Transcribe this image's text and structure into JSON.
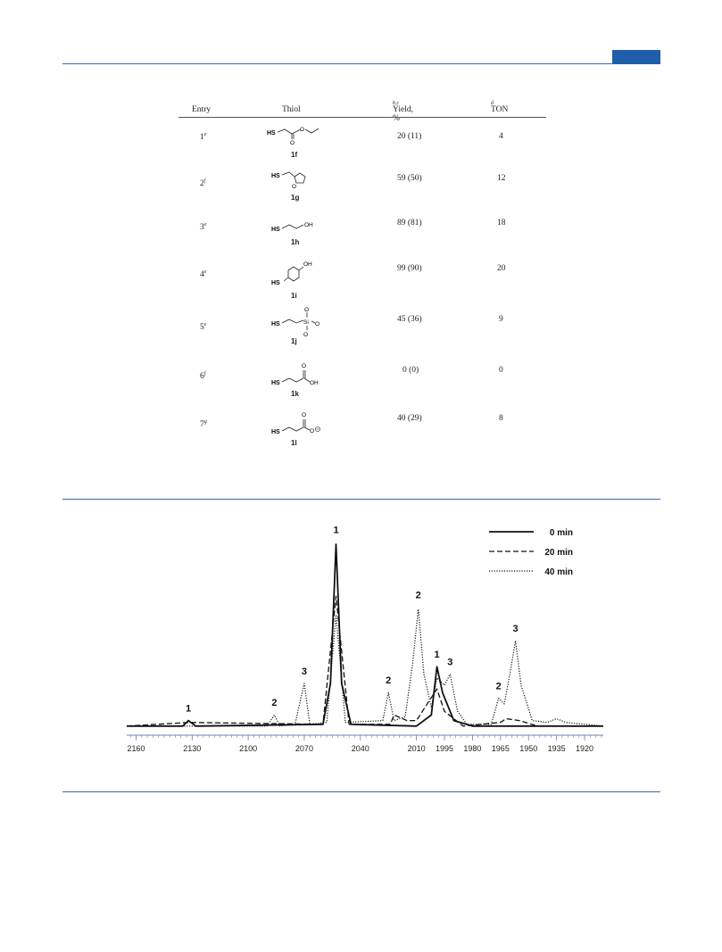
{
  "header": {
    "accent_color": "#1f5faa"
  },
  "table": {
    "columns": [
      {
        "label": "Entry",
        "sup": ""
      },
      {
        "label": "Thiol",
        "sup": ""
      },
      {
        "label": "Yield, %",
        "sup": "b,c"
      },
      {
        "label": "TON",
        "sup": "d"
      }
    ],
    "rows": [
      {
        "entry": "1",
        "sup": "e",
        "thiol_label": "1f",
        "yield": "20 (11)",
        "ton": "4"
      },
      {
        "entry": "2",
        "sup": "f",
        "thiol_label": "1g",
        "yield": "59 (50)",
        "ton": "12"
      },
      {
        "entry": "3",
        "sup": "e",
        "thiol_label": "1h",
        "yield": "89 (81)",
        "ton": "18"
      },
      {
        "entry": "4",
        "sup": "e",
        "thiol_label": "1i",
        "yield": "99 (90)",
        "ton": "20"
      },
      {
        "entry": "5",
        "sup": "e",
        "thiol_label": "1j",
        "yield": "45 (36)",
        "ton": "9"
      },
      {
        "entry": "6",
        "sup": "f",
        "thiol_label": "1k",
        "yield": "0 (0)",
        "ton": "0"
      },
      {
        "entry": "7",
        "sup": "g",
        "thiol_label": "1l",
        "yield": "40 (29)",
        "ton": "8"
      }
    ],
    "atoms": {
      "hs": "HS",
      "oh": "OH",
      "o": "O",
      "si": "Si"
    }
  },
  "chart_data": {
    "type": "line",
    "xlabel": "",
    "ylabel": "",
    "xlim": [
      2165,
      1910
    ],
    "x_ticks": [
      2160,
      2130,
      2100,
      2070,
      2040,
      2010,
      1995,
      1980,
      1965,
      1950,
      1935,
      1920
    ],
    "legend_position": "top-right",
    "series": [
      {
        "name": "0 min",
        "style": "solid",
        "points": [
          [
            2165,
            0.02
          ],
          [
            2135,
            0.02
          ],
          [
            2132,
            0.05
          ],
          [
            2128,
            0.02
          ],
          [
            2060,
            0.03
          ],
          [
            2056,
            0.25
          ],
          [
            2053,
            1.0
          ],
          [
            2050,
            0.25
          ],
          [
            2045,
            0.03
          ],
          [
            2010,
            0.02
          ],
          [
            2002,
            0.08
          ],
          [
            1999,
            0.34
          ],
          [
            1996,
            0.2
          ],
          [
            1990,
            0.05
          ],
          [
            1980,
            0.02
          ],
          [
            1910,
            0.02
          ]
        ]
      },
      {
        "name": "20 min",
        "style": "dashed",
        "points": [
          [
            2165,
            0.02
          ],
          [
            2132,
            0.04
          ],
          [
            2060,
            0.03
          ],
          [
            2053,
            0.72
          ],
          [
            2046,
            0.03
          ],
          [
            2024,
            0.03
          ],
          [
            2022,
            0.08
          ],
          [
            2015,
            0.05
          ],
          [
            2010,
            0.05
          ],
          [
            1999,
            0.22
          ],
          [
            1995,
            0.1
          ],
          [
            1985,
            0.02
          ],
          [
            1965,
            0.04
          ],
          [
            1962,
            0.06
          ],
          [
            1955,
            0.05
          ],
          [
            1945,
            0.02
          ],
          [
            1910,
            0.02
          ]
        ]
      },
      {
        "name": "40 min",
        "style": "dotted",
        "points": [
          [
            2165,
            0.02
          ],
          [
            2090,
            0.02
          ],
          [
            2086,
            0.08
          ],
          [
            2083,
            0.02
          ],
          [
            2075,
            0.03
          ],
          [
            2070,
            0.25
          ],
          [
            2067,
            0.03
          ],
          [
            2058,
            0.04
          ],
          [
            2053,
            0.62
          ],
          [
            2048,
            0.04
          ],
          [
            2028,
            0.05
          ],
          [
            2025,
            0.2
          ],
          [
            2022,
            0.05
          ],
          [
            2016,
            0.07
          ],
          [
            2012,
            0.36
          ],
          [
            2009,
            0.65
          ],
          [
            2006,
            0.3
          ],
          [
            2002,
            0.12
          ],
          [
            1999,
            0.28
          ],
          [
            1995,
            0.24
          ],
          [
            1992,
            0.3
          ],
          [
            1988,
            0.1
          ],
          [
            1983,
            0.03
          ],
          [
            1970,
            0.03
          ],
          [
            1966,
            0.17
          ],
          [
            1963,
            0.14
          ],
          [
            1960,
            0.3
          ],
          [
            1957,
            0.48
          ],
          [
            1954,
            0.24
          ],
          [
            1948,
            0.05
          ],
          [
            1940,
            0.04
          ],
          [
            1935,
            0.06
          ],
          [
            1930,
            0.04
          ],
          [
            1910,
            0.02
          ]
        ]
      }
    ],
    "peak_labels": [
      {
        "text": "1",
        "x": 2132,
        "y": 0.08
      },
      {
        "text": "2",
        "x": 2086,
        "y": 0.11
      },
      {
        "text": "3",
        "x": 2070,
        "y": 0.28
      },
      {
        "text": "1",
        "x": 2053,
        "y": 1.04
      },
      {
        "text": "2",
        "x": 2025,
        "y": 0.23
      },
      {
        "text": "2",
        "x": 2009,
        "y": 0.69
      },
      {
        "text": "1",
        "x": 1999,
        "y": 0.37
      },
      {
        "text": "3",
        "x": 1992,
        "y": 0.33
      },
      {
        "text": "2",
        "x": 1966,
        "y": 0.2
      },
      {
        "text": "3",
        "x": 1957,
        "y": 0.51
      }
    ]
  }
}
